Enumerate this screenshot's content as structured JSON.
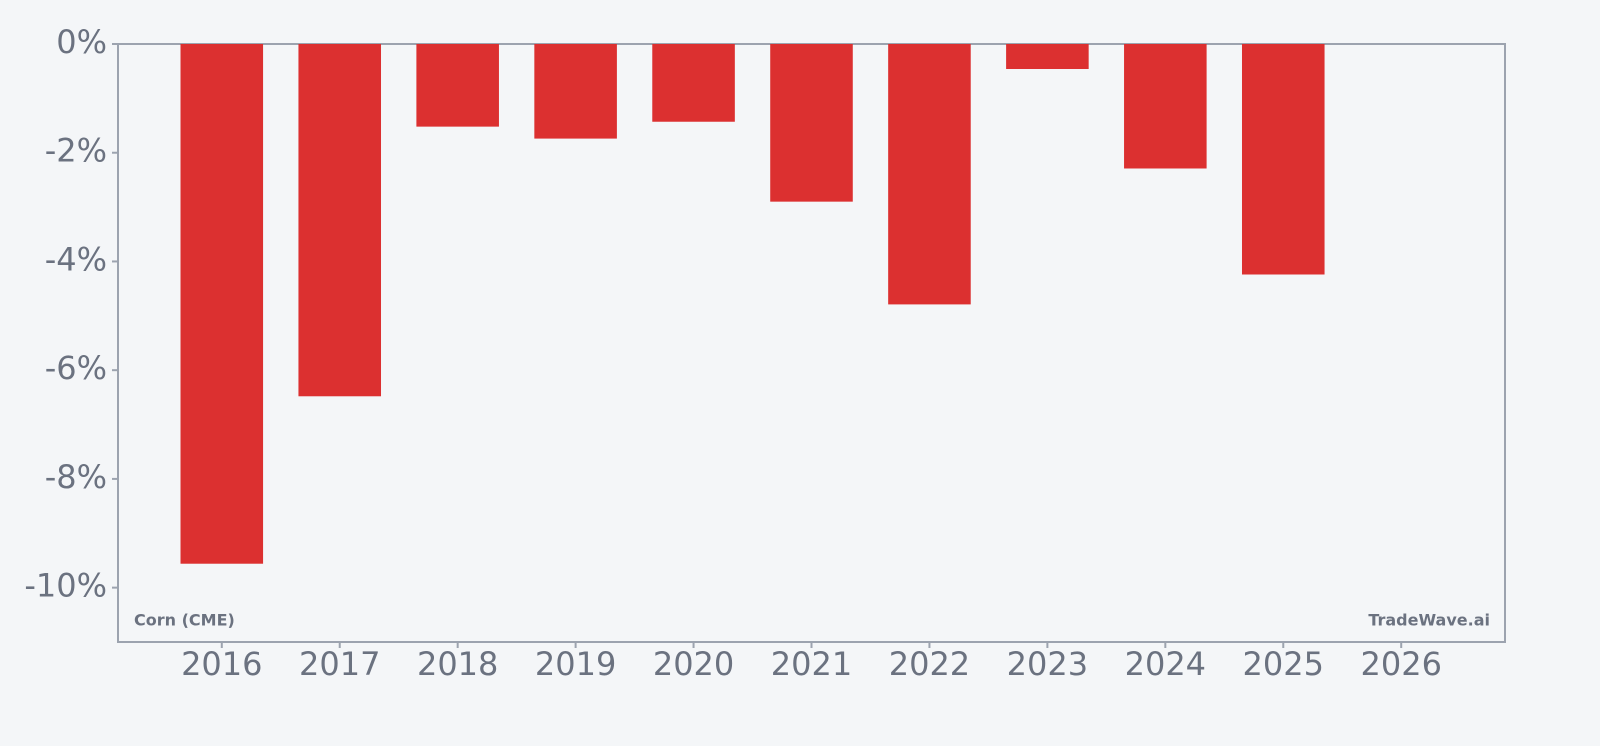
{
  "chart_data": {
    "type": "bar",
    "x": [
      2016,
      2017,
      2018,
      2019,
      2020,
      2021,
      2022,
      2023,
      2024,
      2025,
      2026
    ],
    "values": [
      -9.56,
      -6.48,
      -1.52,
      -1.74,
      -1.43,
      -2.9,
      -4.79,
      -0.46,
      -2.29,
      -4.24,
      null
    ],
    "color": "#dc3030",
    "xlim": [
      2015.12,
      2026.88
    ],
    "xticks": [
      2016,
      2017,
      2018,
      2019,
      2020,
      2021,
      2022,
      2023,
      2024,
      2025,
      2026
    ],
    "ylim": [
      -11,
      0
    ],
    "yticks": [
      {
        "value": 0,
        "label": "0%"
      },
      {
        "value": -2,
        "label": "-2%"
      },
      {
        "value": -4,
        "label": "-4%"
      },
      {
        "value": -6,
        "label": "-6%"
      },
      {
        "value": -8,
        "label": "-8%"
      },
      {
        "value": -10,
        "label": "-10%"
      }
    ],
    "grid": false,
    "annotations": [
      "Corn (CME)",
      "TradeWave.ai"
    ]
  }
}
